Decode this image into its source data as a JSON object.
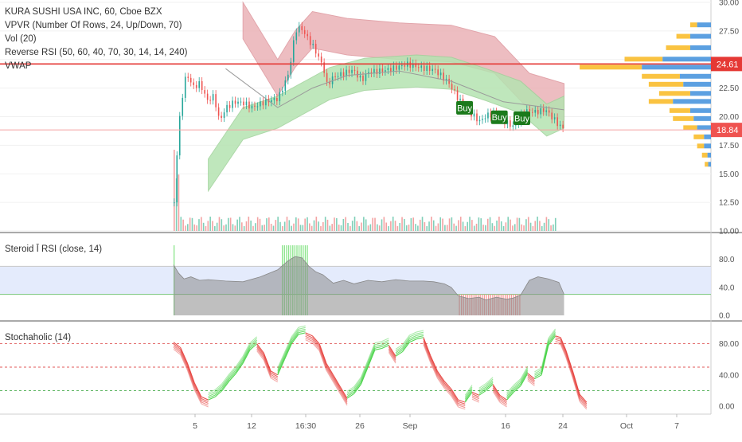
{
  "chart_data": [
    {
      "type": "candlestick",
      "title": "KURA SUSHI USA INC, 60, Cboe BZX",
      "indicators": [
        "VPVR (Number Of Rows, 24, Up/Down, 70)",
        "Vol (20)",
        "Reverse RSI (50, 60, 40, 70, 30, 14, 14, 240)",
        "VWAP"
      ],
      "ylim": [
        10.0,
        30.0
      ],
      "y_ticks": [
        "30.00",
        "27.50",
        "22.50",
        "20.00",
        "17.50",
        "15.00",
        "12.50",
        "10.00"
      ],
      "price_tags": [
        {
          "label": "24.61",
          "value": 24.61,
          "color": "#e53935"
        },
        {
          "label": "18.84",
          "value": 18.84,
          "color": "#ef5350"
        }
      ],
      "horizontal_line": 24.61,
      "close_price": [
        [
          0,
          12.5
        ],
        [
          2,
          17.8
        ],
        [
          4,
          21.2
        ],
        [
          7,
          23.8
        ],
        [
          11,
          22.6
        ],
        [
          15,
          22.9
        ],
        [
          19,
          21.4
        ],
        [
          23,
          21.8
        ],
        [
          26,
          19.6
        ],
        [
          30,
          20.8
        ],
        [
          35,
          21.3
        ],
        [
          40,
          21.2
        ],
        [
          45,
          20.8
        ],
        [
          52,
          21.3
        ],
        [
          60,
          21.6
        ],
        [
          66,
          23.8
        ],
        [
          70,
          27.6
        ],
        [
          73,
          27.8
        ],
        [
          78,
          26.6
        ],
        [
          81,
          25.9
        ],
        [
          86,
          24.3
        ],
        [
          88,
          22.8
        ],
        [
          92,
          23.5
        ],
        [
          98,
          23.8
        ],
        [
          103,
          24.1
        ],
        [
          108,
          23.2
        ],
        [
          112,
          23.9
        ],
        [
          118,
          24.0
        ],
        [
          126,
          24.2
        ],
        [
          134,
          24.6
        ],
        [
          142,
          24.3
        ],
        [
          150,
          24.1
        ],
        [
          158,
          23.0
        ],
        [
          164,
          21.5
        ],
        [
          170,
          20.4
        ],
        [
          176,
          19.6
        ],
        [
          180,
          20.1
        ],
        [
          186,
          20.3
        ],
        [
          190,
          19.6
        ],
        [
          196,
          19.1
        ],
        [
          202,
          20.5
        ],
        [
          208,
          20.4
        ],
        [
          214,
          20.6
        ],
        [
          218,
          19.9
        ],
        [
          222,
          19.2
        ],
        [
          225,
          18.9
        ]
      ],
      "vwap": [
        [
          30,
          24.2
        ],
        [
          60,
          20.8
        ],
        [
          80,
          22.5
        ],
        [
          100,
          23.6
        ],
        [
          130,
          24.0
        ],
        [
          160,
          23.1
        ],
        [
          190,
          21.3
        ],
        [
          225,
          20.6
        ]
      ],
      "upper_band": [
        [
          40,
          30.0
        ],
        [
          60,
          25.0
        ],
        [
          70,
          27.5
        ],
        [
          80,
          29.2
        ],
        [
          100,
          28.6
        ],
        [
          130,
          28.2
        ],
        [
          160,
          28.0
        ],
        [
          185,
          27.0
        ],
        [
          205,
          23.8
        ],
        [
          225,
          22.9
        ]
      ],
      "lower_band": [
        [
          20,
          13.5
        ],
        [
          40,
          18.0
        ],
        [
          60,
          19.0
        ],
        [
          90,
          21.5
        ],
        [
          110,
          22.3
        ],
        [
          140,
          22.6
        ],
        [
          160,
          22.4
        ],
        [
          180,
          21.4
        ],
        [
          200,
          20.3
        ],
        [
          215,
          18.3
        ],
        [
          225,
          19.0
        ]
      ],
      "buy_signals": [
        {
          "label": "Buy",
          "x": 167
        },
        {
          "label": "Buy",
          "x": 187
        },
        {
          "label": "Buy",
          "x": 200
        }
      ],
      "volume_profile": [
        {
          "price": 28.0,
          "up": 0.2,
          "down": 0.1
        },
        {
          "price": 27.0,
          "up": 0.3,
          "down": 0.2
        },
        {
          "price": 26.0,
          "up": 0.3,
          "down": 0.35
        },
        {
          "price": 25.0,
          "up": 0.7,
          "down": 0.55
        },
        {
          "price": 24.3,
          "up": 1.0,
          "down": 0.9
        },
        {
          "price": 23.5,
          "up": 0.45,
          "down": 0.55
        },
        {
          "price": 22.8,
          "up": 0.4,
          "down": 0.5
        },
        {
          "price": 22.0,
          "up": 0.3,
          "down": 0.45
        },
        {
          "price": 21.3,
          "up": 0.55,
          "down": 0.35
        },
        {
          "price": 20.5,
          "up": 0.3,
          "down": 0.3
        },
        {
          "price": 19.8,
          "up": 0.25,
          "down": 0.3
        },
        {
          "price": 19.0,
          "up": 0.2,
          "down": 0.2
        },
        {
          "price": 18.2,
          "up": 0.1,
          "down": 0.15
        },
        {
          "price": 17.4,
          "up": 0.1,
          "down": 0.1
        },
        {
          "price": 16.6,
          "up": 0.05,
          "down": 0.08
        },
        {
          "price": 15.8,
          "up": 0.04,
          "down": 0.05
        }
      ]
    },
    {
      "type": "area",
      "title": "Steroid Ī RSI (close, 14)",
      "ylim": [
        0,
        100
      ],
      "y_ticks": [
        "80.0",
        "40.0",
        "0.0"
      ],
      "band": [
        30,
        70
      ],
      "values": [
        [
          0,
          72
        ],
        [
          3,
          60
        ],
        [
          6,
          52
        ],
        [
          10,
          55
        ],
        [
          15,
          50
        ],
        [
          20,
          51
        ],
        [
          30,
          49
        ],
        [
          40,
          48
        ],
        [
          50,
          55
        ],
        [
          60,
          65
        ],
        [
          66,
          78
        ],
        [
          70,
          84
        ],
        [
          74,
          82
        ],
        [
          78,
          70
        ],
        [
          82,
          62
        ],
        [
          86,
          58
        ],
        [
          92,
          46
        ],
        [
          98,
          50
        ],
        [
          104,
          45
        ],
        [
          112,
          50
        ],
        [
          120,
          48
        ],
        [
          128,
          51
        ],
        [
          136,
          49
        ],
        [
          144,
          49
        ],
        [
          150,
          48
        ],
        [
          156,
          45
        ],
        [
          160,
          40
        ],
        [
          164,
          28
        ],
        [
          170,
          24
        ],
        [
          176,
          26
        ],
        [
          180,
          22
        ],
        [
          186,
          26
        ],
        [
          192,
          23
        ],
        [
          196,
          25
        ],
        [
          200,
          29
        ],
        [
          205,
          50
        ],
        [
          210,
          55
        ],
        [
          216,
          52
        ],
        [
          222,
          47
        ],
        [
          225,
          30
        ]
      ]
    },
    {
      "type": "line",
      "title": "Stochaholic (14)",
      "ylim": [
        0,
        100
      ],
      "y_ticks": [
        "80.00",
        "40.00",
        "0.00"
      ],
      "reference_lines": [
        80,
        50,
        20
      ],
      "values": [
        [
          0,
          82
        ],
        [
          4,
          75
        ],
        [
          8,
          55
        ],
        [
          12,
          30
        ],
        [
          16,
          12
        ],
        [
          20,
          8
        ],
        [
          24,
          12
        ],
        [
          28,
          20
        ],
        [
          32,
          32
        ],
        [
          36,
          42
        ],
        [
          40,
          55
        ],
        [
          44,
          72
        ],
        [
          48,
          80
        ],
        [
          52,
          68
        ],
        [
          56,
          45
        ],
        [
          60,
          40
        ],
        [
          64,
          60
        ],
        [
          68,
          80
        ],
        [
          72,
          92
        ],
        [
          76,
          94
        ],
        [
          80,
          90
        ],
        [
          84,
          80
        ],
        [
          88,
          55
        ],
        [
          92,
          40
        ],
        [
          96,
          25
        ],
        [
          100,
          10
        ],
        [
          104,
          16
        ],
        [
          108,
          28
        ],
        [
          112,
          50
        ],
        [
          116,
          72
        ],
        [
          120,
          74
        ],
        [
          124,
          78
        ],
        [
          128,
          64
        ],
        [
          132,
          70
        ],
        [
          136,
          82
        ],
        [
          140,
          86
        ],
        [
          144,
          88
        ],
        [
          148,
          65
        ],
        [
          152,
          45
        ],
        [
          156,
          32
        ],
        [
          160,
          22
        ],
        [
          164,
          8
        ],
        [
          168,
          5
        ],
        [
          172,
          18
        ],
        [
          176,
          14
        ],
        [
          180,
          20
        ],
        [
          184,
          28
        ],
        [
          188,
          14
        ],
        [
          192,
          8
        ],
        [
          196,
          18
        ],
        [
          200,
          26
        ],
        [
          204,
          42
        ],
        [
          208,
          35
        ],
        [
          212,
          40
        ],
        [
          216,
          78
        ],
        [
          220,
          90
        ],
        [
          223,
          88
        ],
        [
          226,
          72
        ],
        [
          230,
          45
        ],
        [
          234,
          15
        ],
        [
          238,
          5
        ]
      ]
    }
  ],
  "x_axis": {
    "labels": [
      "5",
      "12",
      "16:30",
      "26",
      "Sep",
      "16",
      "24",
      "Oct",
      "7"
    ]
  }
}
